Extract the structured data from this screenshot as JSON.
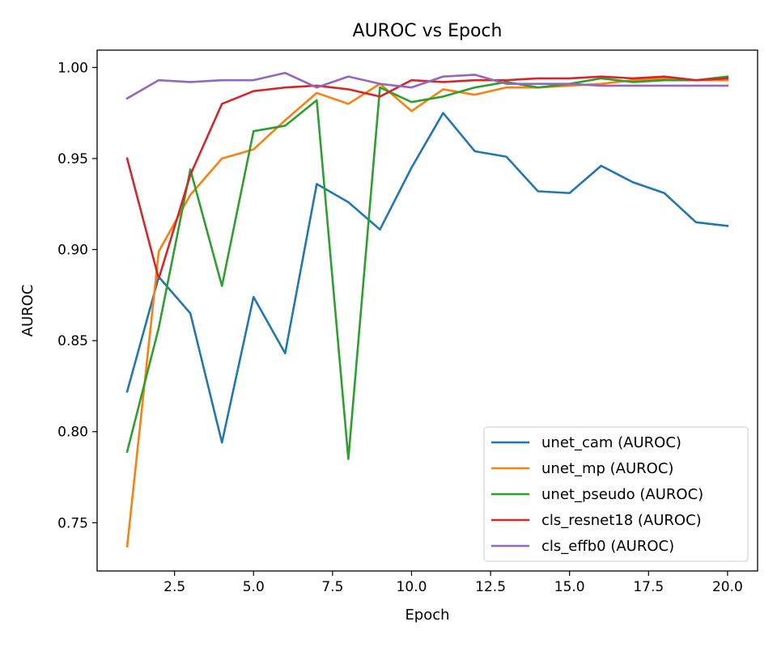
{
  "chart_data": {
    "type": "line",
    "title": "AUROC vs Epoch",
    "xlabel": "Epoch",
    "ylabel": "AUROC",
    "xlim": [
      0.05,
      20.95
    ],
    "ylim": [
      0.7235,
      1.0095
    ],
    "xticks": [
      2.5,
      5.0,
      7.5,
      10.0,
      12.5,
      15.0,
      17.5,
      20.0
    ],
    "xtick_labels": [
      "2.5",
      "5.0",
      "7.5",
      "10.0",
      "12.5",
      "15.0",
      "17.5",
      "20.0"
    ],
    "yticks": [
      0.75,
      0.8,
      0.85,
      0.9,
      0.95,
      1.0
    ],
    "ytick_labels": [
      "0.75",
      "0.80",
      "0.85",
      "0.90",
      "0.95",
      "1.00"
    ],
    "grid": false,
    "legend_position": "bottom-right",
    "x": [
      1,
      2,
      3,
      4,
      5,
      6,
      7,
      8,
      9,
      10,
      11,
      12,
      13,
      14,
      15,
      16,
      17,
      18,
      19,
      20
    ],
    "series": [
      {
        "name": "unet_cam (AUROC)",
        "color": "#1f77b4",
        "values": [
          0.822,
          0.885,
          0.865,
          0.794,
          0.874,
          0.843,
          0.936,
          0.926,
          0.911,
          0.945,
          0.975,
          0.954,
          0.951,
          0.932,
          0.931,
          0.946,
          0.937,
          0.931,
          0.915,
          0.913
        ]
      },
      {
        "name": "unet_mp (AUROC)",
        "color": "#ff7f0e",
        "values": [
          0.737,
          0.899,
          0.93,
          0.95,
          0.955,
          0.971,
          0.986,
          0.98,
          0.991,
          0.976,
          0.988,
          0.985,
          0.989,
          0.989,
          0.99,
          0.991,
          0.993,
          0.994,
          0.993,
          0.993
        ]
      },
      {
        "name": "unet_pseudo (AUROC)",
        "color": "#2ca02c",
        "values": [
          0.789,
          0.857,
          0.944,
          0.88,
          0.965,
          0.968,
          0.982,
          0.785,
          0.989,
          0.981,
          0.984,
          0.989,
          0.992,
          0.989,
          0.991,
          0.994,
          0.992,
          0.993,
          0.993,
          0.995
        ]
      },
      {
        "name": "cls_resnet18 (AUROC)",
        "color": "#d62728",
        "values": [
          0.95,
          0.884,
          0.941,
          0.98,
          0.987,
          0.989,
          0.99,
          0.988,
          0.984,
          0.993,
          0.992,
          0.993,
          0.993,
          0.994,
          0.994,
          0.995,
          0.994,
          0.995,
          0.993,
          0.994
        ]
      },
      {
        "name": "cls_effb0 (AUROC)",
        "color": "#9467bd",
        "values": [
          0.983,
          0.993,
          0.992,
          0.993,
          0.993,
          0.997,
          0.989,
          0.995,
          0.991,
          0.989,
          0.995,
          0.996,
          0.991,
          0.991,
          0.991,
          0.99,
          0.99,
          0.99,
          0.99,
          0.99
        ]
      }
    ]
  }
}
